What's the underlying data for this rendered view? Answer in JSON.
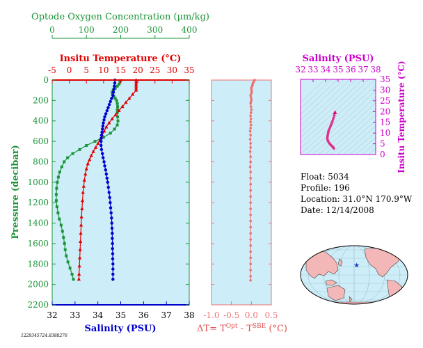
{
  "colors": {
    "oxygen": "#1a9437",
    "temperature": "#e00000",
    "salinity": "#0000cc",
    "delta": "#f07070",
    "magenta": "#cc00cc",
    "plot_bg": "#cdeef8",
    "land": "#f4b7b7",
    "float_marker": "#1a3acc"
  },
  "chart_data": [
    {
      "id": "profile",
      "type": "line",
      "ylabel": "Pressure (decibar)",
      "ylim": [
        2200,
        0
      ],
      "yticks": [
        0,
        200,
        400,
        600,
        800,
        1000,
        1200,
        1400,
        1600,
        1800,
        2000,
        2200
      ],
      "axes": {
        "oxygen": {
          "label": "Optode Oxygen Concentration (µm/kg)",
          "range": [
            0,
            400
          ],
          "ticks": [
            0,
            100,
            200,
            300,
            400
          ]
        },
        "temperature": {
          "label": "Insitu Temperature (°C)",
          "range": [
            -5,
            35
          ],
          "ticks": [
            -5,
            0,
            5,
            10,
            15,
            20,
            25,
            30,
            35
          ]
        },
        "salinity": {
          "label": "Salinity (PSU)",
          "range": [
            32,
            38
          ],
          "ticks": [
            32,
            33,
            34,
            35,
            36,
            37,
            38
          ]
        }
      },
      "series": [
        {
          "key": "oxygen",
          "marker": "square",
          "points": [
            [
              200,
              5
            ],
            [
              198,
              20
            ],
            [
              195,
              40
            ],
            [
              190,
              60
            ],
            [
              184,
              80
            ],
            [
              178,
              100
            ],
            [
              175,
              120
            ],
            [
              176,
              140
            ],
            [
              180,
              160
            ],
            [
              184,
              180
            ],
            [
              188,
              200
            ],
            [
              190,
              230
            ],
            [
              191,
              260
            ],
            [
              190,
              290
            ],
            [
              190,
              320
            ],
            [
              191,
              360
            ],
            [
              192,
              400
            ],
            [
              190,
              440
            ],
            [
              182,
              480
            ],
            [
              170,
              520
            ],
            [
              150,
              560
            ],
            [
              125,
              600
            ],
            [
              100,
              640
            ],
            [
              80,
              680
            ],
            [
              60,
              720
            ],
            [
              45,
              760
            ],
            [
              35,
              800
            ],
            [
              28,
              850
            ],
            [
              22,
              900
            ],
            [
              18,
              950
            ],
            [
              15,
              1000
            ],
            [
              13,
              1060
            ],
            [
              12,
              1120
            ],
            [
              12,
              1180
            ],
            [
              14,
              1240
            ],
            [
              17,
              1300
            ],
            [
              21,
              1360
            ],
            [
              26,
              1420
            ],
            [
              30,
              1480
            ],
            [
              33,
              1540
            ],
            [
              36,
              1600
            ],
            [
              38,
              1660
            ],
            [
              41,
              1720
            ],
            [
              46,
              1780
            ],
            [
              52,
              1840
            ],
            [
              58,
              1900
            ],
            [
              62,
              1950
            ]
          ]
        },
        {
          "key": "temperature",
          "marker": "triangle",
          "points": [
            [
              19.5,
              0
            ],
            [
              19.5,
              20
            ],
            [
              19.5,
              40
            ],
            [
              19.5,
              60
            ],
            [
              19.5,
              80
            ],
            [
              19.5,
              100
            ],
            [
              18.5,
              140
            ],
            [
              17.5,
              180
            ],
            [
              16.5,
              220
            ],
            [
              15.5,
              260
            ],
            [
              14.5,
              300
            ],
            [
              13.5,
              340
            ],
            [
              12.5,
              380
            ],
            [
              11.6,
              420
            ],
            [
              10.8,
              460
            ],
            [
              10.2,
              500
            ],
            [
              9.6,
              540
            ],
            [
              9.0,
              580
            ],
            [
              8.4,
              620
            ],
            [
              7.7,
              660
            ],
            [
              7.0,
              700
            ],
            [
              6.4,
              740
            ],
            [
              5.9,
              780
            ],
            [
              5.4,
              820
            ],
            [
              5.0,
              870
            ],
            [
              4.7,
              920
            ],
            [
              4.4,
              980
            ],
            [
              4.2,
              1040
            ],
            [
              4.0,
              1100
            ],
            [
              3.85,
              1180
            ],
            [
              3.7,
              1260
            ],
            [
              3.55,
              1340
            ],
            [
              3.45,
              1420
            ],
            [
              3.35,
              1500
            ],
            [
              3.25,
              1580
            ],
            [
              3.15,
              1660
            ],
            [
              3.05,
              1740
            ],
            [
              2.95,
              1820
            ],
            [
              2.85,
              1900
            ],
            [
              2.8,
              1950
            ]
          ]
        },
        {
          "key": "salinity",
          "marker": "circle",
          "points": [
            [
              34.75,
              0
            ],
            [
              34.74,
              30
            ],
            [
              34.72,
              60
            ],
            [
              34.7,
              90
            ],
            [
              34.68,
              120
            ],
            [
              34.66,
              150
            ],
            [
              34.6,
              180
            ],
            [
              34.55,
              210
            ],
            [
              34.5,
              240
            ],
            [
              34.45,
              270
            ],
            [
              34.4,
              300
            ],
            [
              34.35,
              330
            ],
            [
              34.3,
              360
            ],
            [
              34.27,
              390
            ],
            [
              34.24,
              420
            ],
            [
              34.22,
              450
            ],
            [
              34.2,
              480
            ],
            [
              34.18,
              510
            ],
            [
              34.16,
              540
            ],
            [
              34.15,
              570
            ],
            [
              34.14,
              600
            ],
            [
              34.14,
              640
            ],
            [
              34.16,
              680
            ],
            [
              34.2,
              720
            ],
            [
              34.23,
              760
            ],
            [
              34.27,
              800
            ],
            [
              34.3,
              840
            ],
            [
              34.34,
              880
            ],
            [
              34.37,
              920
            ],
            [
              34.4,
              960
            ],
            [
              34.43,
              1000
            ],
            [
              34.46,
              1050
            ],
            [
              34.49,
              1100
            ],
            [
              34.52,
              1150
            ],
            [
              34.54,
              1200
            ],
            [
              34.56,
              1250
            ],
            [
              34.58,
              1300
            ],
            [
              34.6,
              1350
            ],
            [
              34.61,
              1400
            ],
            [
              34.62,
              1450
            ],
            [
              34.63,
              1500
            ],
            [
              34.63,
              1550
            ],
            [
              34.64,
              1600
            ],
            [
              34.64,
              1650
            ],
            [
              34.65,
              1700
            ],
            [
              34.65,
              1750
            ],
            [
              34.66,
              1800
            ],
            [
              34.66,
              1850
            ],
            [
              34.66,
              1900
            ],
            [
              34.66,
              1950
            ]
          ]
        }
      ]
    },
    {
      "id": "delta",
      "type": "scatter",
      "xlabel": "ΔT= T^Opt - T^SBE (°C)",
      "xlim": [
        -1.0,
        0.5
      ],
      "xticks": [
        -1.0,
        -0.5,
        0.0,
        0.5
      ],
      "xtick_labels": [
        "-1.0",
        "-0.5",
        "0.0",
        "0.5"
      ],
      "ylim": [
        2200,
        0
      ],
      "points": [
        [
          0.08,
          0
        ],
        [
          0.06,
          15
        ],
        [
          0.04,
          30
        ],
        [
          0.03,
          45
        ],
        [
          0.02,
          60
        ],
        [
          0.0,
          75
        ],
        [
          0.0,
          90
        ],
        [
          0.01,
          110
        ],
        [
          0.0,
          130
        ],
        [
          -0.02,
          150
        ],
        [
          -0.01,
          170
        ],
        [
          0.0,
          190
        ],
        [
          -0.01,
          210
        ],
        [
          -0.02,
          230
        ],
        [
          -0.01,
          260
        ],
        [
          0.0,
          290
        ],
        [
          -0.01,
          320
        ],
        [
          -0.02,
          350
        ],
        [
          -0.01,
          380
        ],
        [
          -0.02,
          410
        ],
        [
          -0.01,
          440
        ],
        [
          -0.02,
          470
        ],
        [
          -0.03,
          500
        ],
        [
          -0.02,
          540
        ],
        [
          -0.03,
          580
        ],
        [
          -0.02,
          620
        ],
        [
          -0.02,
          660
        ],
        [
          -0.03,
          700
        ],
        [
          -0.02,
          750
        ],
        [
          -0.02,
          800
        ],
        [
          -0.03,
          850
        ],
        [
          -0.02,
          900
        ],
        [
          -0.02,
          960
        ],
        [
          -0.02,
          1020
        ],
        [
          -0.02,
          1080
        ],
        [
          -0.02,
          1140
        ],
        [
          -0.02,
          1200
        ],
        [
          -0.02,
          1260
        ],
        [
          -0.02,
          1320
        ],
        [
          -0.02,
          1380
        ],
        [
          -0.02,
          1440
        ],
        [
          -0.02,
          1500
        ],
        [
          -0.02,
          1560
        ],
        [
          -0.02,
          1620
        ],
        [
          -0.02,
          1680
        ],
        [
          -0.02,
          1740
        ],
        [
          -0.02,
          1800
        ],
        [
          -0.02,
          1860
        ],
        [
          -0.02,
          1920
        ],
        [
          -0.02,
          1960
        ]
      ]
    },
    {
      "id": "ts",
      "type": "scatter",
      "xlabel": "Salinity (PSU)",
      "ylabel": "Insitu Temperature (°C)",
      "xlim": [
        32,
        38
      ],
      "ylim": [
        0,
        35
      ],
      "xticks": [
        32,
        33,
        34,
        35,
        36,
        37,
        38
      ],
      "yticks": [
        0,
        5,
        10,
        15,
        20,
        25,
        30,
        35
      ],
      "points": [
        [
          34.75,
          19.5
        ],
        [
          34.7,
          18.3
        ],
        [
          34.65,
          17.3
        ],
        [
          34.6,
          16.4
        ],
        [
          34.55,
          15.5
        ],
        [
          34.5,
          14.7
        ],
        [
          34.45,
          14.0
        ],
        [
          34.4,
          13.3
        ],
        [
          34.35,
          12.6
        ],
        [
          34.3,
          11.9
        ],
        [
          34.25,
          11.2
        ],
        [
          34.22,
          10.6
        ],
        [
          34.2,
          10.0
        ],
        [
          34.18,
          9.4
        ],
        [
          34.16,
          8.8
        ],
        [
          34.15,
          8.2
        ],
        [
          34.14,
          7.6
        ],
        [
          34.15,
          7.0
        ],
        [
          34.18,
          6.5
        ],
        [
          34.22,
          6.0
        ],
        [
          34.27,
          5.5
        ],
        [
          34.32,
          5.1
        ],
        [
          34.38,
          4.7
        ],
        [
          34.44,
          4.3
        ],
        [
          34.5,
          4.0
        ],
        [
          34.55,
          3.7
        ],
        [
          34.6,
          3.4
        ],
        [
          34.63,
          3.2
        ],
        [
          34.65,
          3.0
        ],
        [
          34.66,
          2.8
        ]
      ]
    }
  ],
  "info": {
    "float": "Float:  5034",
    "profile": "Profile:  196",
    "location": "Location:  31.0°N  170.9°W",
    "date": "Date:  12/14/2008"
  },
  "serial": "1229345724.8388276",
  "map": {
    "float_lon": -170.9,
    "float_lat": 31.0
  }
}
